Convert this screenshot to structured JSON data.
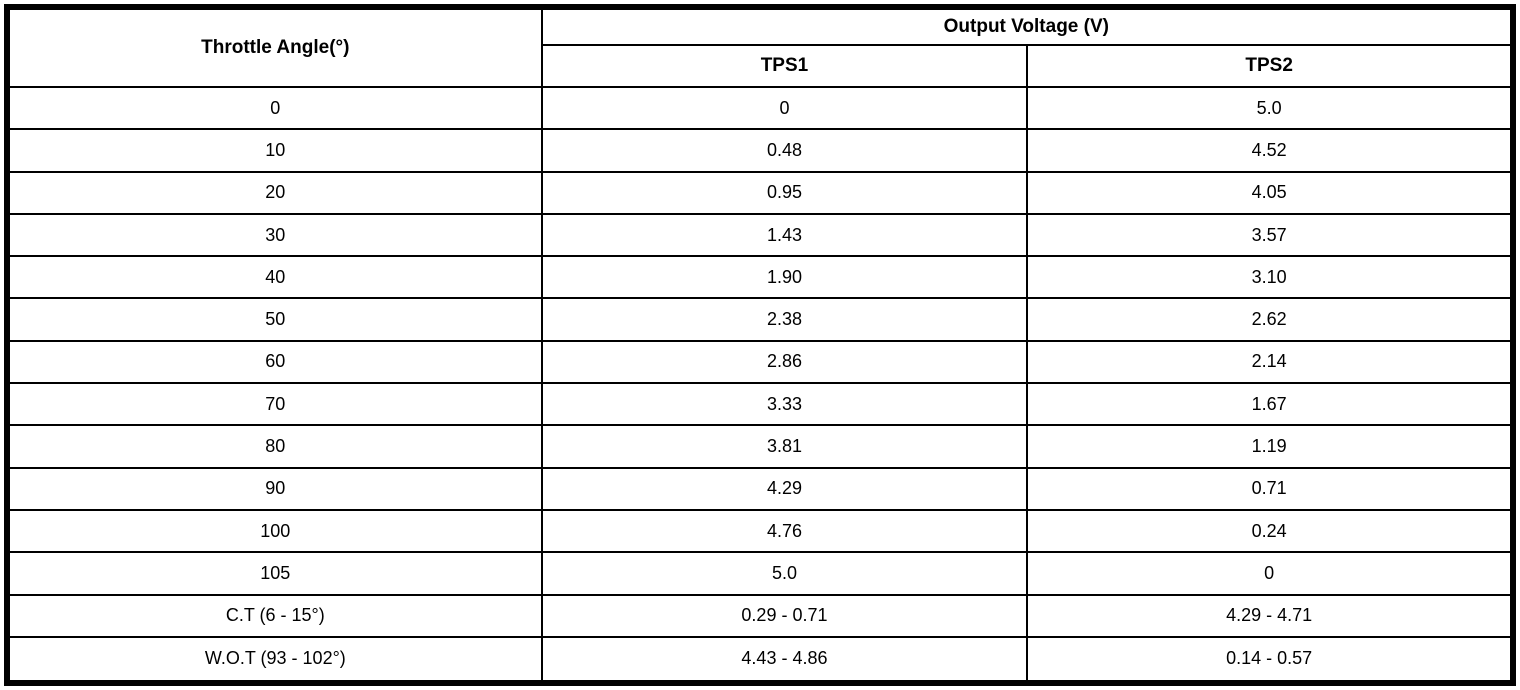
{
  "table": {
    "col1_header": "Throttle Angle(°)",
    "group_header": "Output Voltage (V)",
    "sub_headers": [
      "TPS1",
      "TPS2"
    ],
    "rows": [
      {
        "angle": "0",
        "tps1": "0",
        "tps2": "5.0"
      },
      {
        "angle": "10",
        "tps1": "0.48",
        "tps2": "4.52"
      },
      {
        "angle": "20",
        "tps1": "0.95",
        "tps2": "4.05"
      },
      {
        "angle": "30",
        "tps1": "1.43",
        "tps2": "3.57"
      },
      {
        "angle": "40",
        "tps1": "1.90",
        "tps2": "3.10"
      },
      {
        "angle": "50",
        "tps1": "2.38",
        "tps2": "2.62"
      },
      {
        "angle": "60",
        "tps1": "2.86",
        "tps2": "2.14"
      },
      {
        "angle": "70",
        "tps1": "3.33",
        "tps2": "1.67"
      },
      {
        "angle": "80",
        "tps1": "3.81",
        "tps2": "1.19"
      },
      {
        "angle": "90",
        "tps1": "4.29",
        "tps2": "0.71"
      },
      {
        "angle": "100",
        "tps1": "4.76",
        "tps2": "0.24"
      },
      {
        "angle": "105",
        "tps1": "5.0",
        "tps2": "0"
      },
      {
        "angle": "C.T (6 - 15°)",
        "tps1": "0.29 - 0.71",
        "tps2": "4.29 - 4.71"
      },
      {
        "angle": "W.O.T (93 - 102°)",
        "tps1": "4.43 - 4.86",
        "tps2": "0.14 - 0.57"
      }
    ],
    "colors": {
      "border": "#000000",
      "background": "#ffffff",
      "text": "#000000"
    }
  }
}
